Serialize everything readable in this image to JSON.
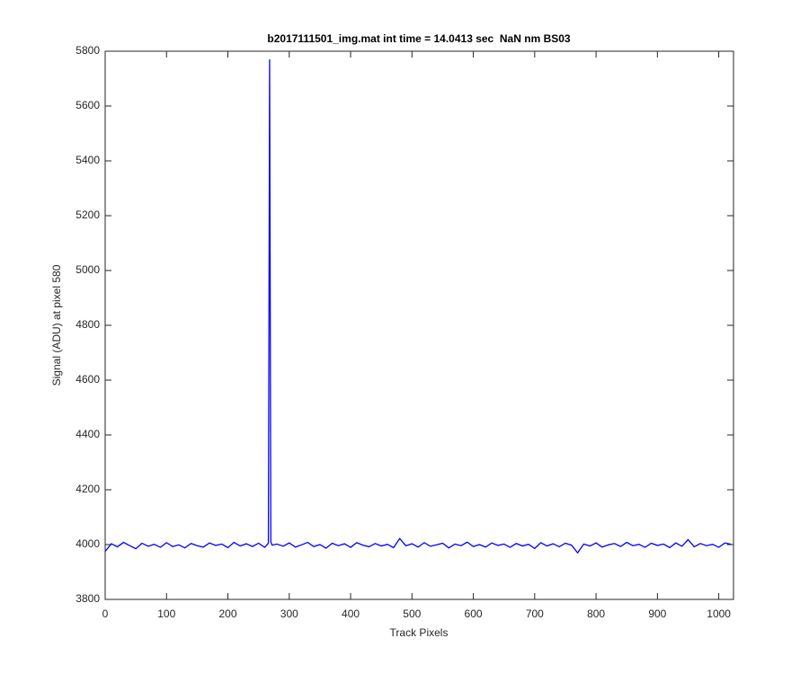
{
  "chart_data": {
    "type": "line",
    "title": "b2017111501_img.mat int time = 14.0413 sec  NaN nm BS03",
    "x_label": "Track Pixels",
    "y_label": "Signal (ADU) at pixel 580",
    "x": [
      0,
      10,
      20,
      30,
      40,
      50,
      60,
      70,
      80,
      90,
      100,
      110,
      120,
      130,
      140,
      150,
      160,
      170,
      180,
      190,
      200,
      210,
      220,
      230,
      240,
      250,
      260,
      266,
      268,
      270,
      272,
      280,
      290,
      300,
      310,
      320,
      330,
      340,
      350,
      360,
      370,
      380,
      390,
      400,
      410,
      420,
      430,
      440,
      450,
      460,
      470,
      480,
      490,
      500,
      510,
      520,
      530,
      540,
      550,
      560,
      570,
      580,
      590,
      600,
      610,
      620,
      630,
      640,
      650,
      660,
      670,
      680,
      690,
      700,
      710,
      720,
      730,
      740,
      750,
      760,
      770,
      780,
      790,
      800,
      810,
      820,
      830,
      840,
      850,
      860,
      870,
      880,
      890,
      900,
      910,
      920,
      930,
      940,
      950,
      960,
      970,
      980,
      990,
      1000,
      1010,
      1020
    ],
    "series": [
      {
        "name": "signal",
        "color": "#0000ff",
        "values": [
          3975,
          4003,
          3992,
          4008,
          3996,
          3985,
          4005,
          3994,
          4001,
          3990,
          4007,
          3993,
          3999,
          3988,
          4004,
          3996,
          3991,
          4006,
          3997,
          4002,
          3989,
          4008,
          3995,
          4003,
          3993,
          4005,
          3990,
          4005,
          5770,
          4010,
          3998,
          4002,
          3994,
          4006,
          3991,
          3999,
          4008,
          3993,
          4000,
          3987,
          4005,
          3996,
          4003,
          3990,
          4007,
          3998,
          3992,
          4004,
          3995,
          4001,
          3989,
          4022,
          3996,
          4003,
          3991,
          4007,
          3994,
          3999,
          4005,
          3988,
          4002,
          3996,
          4009,
          3993,
          4000,
          3991,
          4006,
          3997,
          4002,
          3990,
          4004,
          3995,
          4001,
          3986,
          4007,
          3995,
          4003,
          3992,
          4005,
          3998,
          3970,
          4002,
          3995,
          4006,
          3991,
          3999,
          4004,
          3993,
          4008,
          3996,
          4001,
          3990,
          4005,
          3997,
          4002,
          3989,
          4006,
          3994,
          4018,
          3992,
          4004,
          3996,
          4001,
          3990,
          4006,
          4001
        ]
      }
    ],
    "xlim": [
      0,
      1024
    ],
    "ylim": [
      3800,
      5800
    ],
    "xticks": [
      0,
      100,
      200,
      300,
      400,
      500,
      600,
      700,
      800,
      900,
      1000
    ],
    "yticks": [
      3800,
      4000,
      4200,
      4400,
      4600,
      4800,
      5000,
      5200,
      5400,
      5600,
      5800
    ],
    "grid": false
  }
}
